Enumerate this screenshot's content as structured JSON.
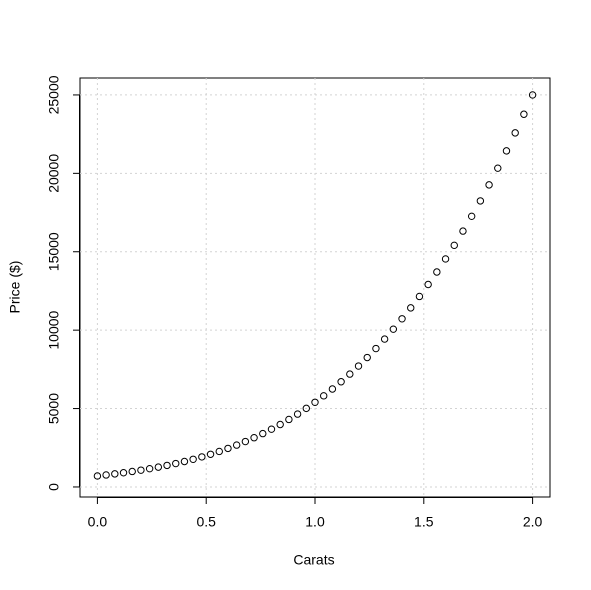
{
  "chart_data": {
    "type": "scatter",
    "x_label": "Carats",
    "y_label": "Price ($)",
    "series": [
      {
        "name": "Price",
        "color": "#000000",
        "x": [
          0,
          0.04,
          0.08,
          0.12,
          0.16,
          0.2,
          0.24,
          0.28,
          0.32,
          0.36,
          0.4,
          0.44,
          0.48,
          0.52,
          0.56,
          0.6,
          0.64,
          0.68,
          0.72,
          0.76,
          0.8,
          0.84,
          0.88,
          0.92,
          0.96,
          1,
          1.04,
          1.08,
          1.12,
          1.16,
          1.2,
          1.24,
          1.28,
          1.32,
          1.36,
          1.4,
          1.44,
          1.48,
          1.52,
          1.56,
          1.6,
          1.64,
          1.68,
          1.72,
          1.76,
          1.8,
          1.84,
          1.88,
          1.92,
          1.96,
          2
        ],
        "values": [
          700,
          765,
          834,
          907,
          987,
          1072,
          1165,
          1265,
          1375,
          1494,
          1624,
          1765,
          1918,
          2085,
          2265,
          2460,
          2670,
          2897,
          3141,
          3403,
          3684,
          3984,
          4305,
          4648,
          5012,
          5400,
          5811,
          6247,
          6709,
          7197,
          7712,
          8255,
          8827,
          9429,
          10061,
          10724,
          11420,
          12149,
          12911,
          13708,
          14541,
          15410,
          16316,
          17260,
          18243,
          19265,
          20329,
          21433,
          22580,
          23769,
          25000
        ]
      }
    ],
    "xlim": [
      -0.08,
      2.08
    ],
    "xticks": [
      {
        "value": 0,
        "label": "0.0"
      },
      0.5,
      {
        "value": 1,
        "label": "1.0"
      },
      1.5,
      {
        "value": 2,
        "label": "2.0"
      }
    ],
    "ylim": [
      -640,
      26080
    ],
    "yticks": [
      0,
      5000,
      10000,
      15000,
      20000,
      25000
    ],
    "grid": true
  }
}
